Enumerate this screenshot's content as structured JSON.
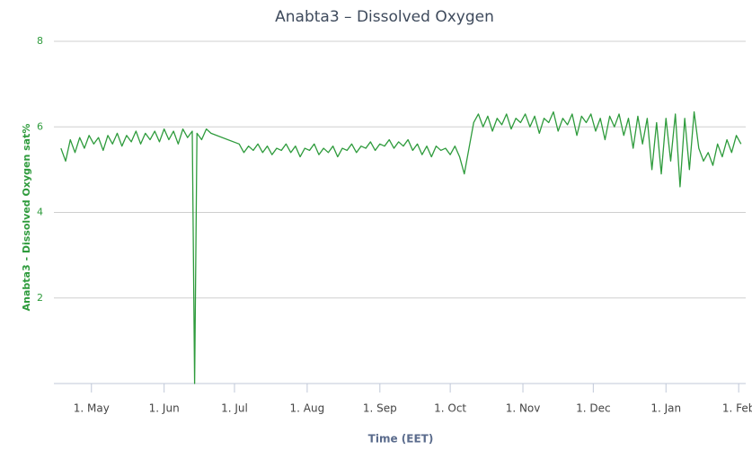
{
  "chart_data": {
    "type": "line",
    "title": "Anabta3 – Dissolved Oxygen",
    "y_label": "Anabta3 - Dissolved Oxygen sat%",
    "x_label": "Time (EET)",
    "xlim": [
      -16,
      279
    ],
    "xticks": [
      {
        "value": 0,
        "label": "1. May"
      },
      {
        "value": 31,
        "label": "1. Jun"
      },
      {
        "value": 61,
        "label": "1. Jul"
      },
      {
        "value": 92,
        "label": "1. Aug"
      },
      {
        "value": 123,
        "label": "1. Sep"
      },
      {
        "value": 153,
        "label": "1. Oct"
      },
      {
        "value": 184,
        "label": "1. Nov"
      },
      {
        "value": 214,
        "label": "1. Dec"
      },
      {
        "value": 245,
        "label": "1. Jan"
      },
      {
        "value": 276,
        "label": "1. Feb"
      }
    ],
    "ylim": [
      0,
      8
    ],
    "yticks": [
      2,
      4,
      6,
      8
    ],
    "grid": true,
    "series": [
      {
        "name": "Anabta3 - Dissolved Oxygen sat%",
        "color": "#2e9b3c",
        "x": [
          -13,
          -11,
          -9,
          -7,
          -5,
          -3,
          -1,
          1,
          3,
          5,
          7,
          9,
          11,
          13,
          15,
          17,
          19,
          21,
          23,
          25,
          27,
          29,
          31,
          33,
          35,
          37,
          39,
          41,
          43,
          44,
          45,
          47,
          49,
          51,
          63,
          65,
          67,
          69,
          71,
          73,
          75,
          77,
          79,
          81,
          83,
          85,
          87,
          89,
          91,
          93,
          95,
          97,
          99,
          101,
          103,
          105,
          107,
          109,
          111,
          113,
          115,
          117,
          119,
          121,
          123,
          125,
          127,
          129,
          131,
          133,
          135,
          137,
          139,
          141,
          143,
          145,
          147,
          149,
          151,
          153,
          155,
          157,
          159,
          161,
          163,
          165,
          167,
          169,
          171,
          173,
          175,
          177,
          179,
          181,
          183,
          185,
          187,
          189,
          191,
          193,
          195,
          197,
          199,
          201,
          203,
          205,
          207,
          209,
          211,
          213,
          215,
          217,
          219,
          221,
          223,
          225,
          227,
          229,
          231,
          233,
          235,
          237,
          239,
          241,
          243,
          245,
          247,
          249,
          251,
          253,
          255,
          257,
          259,
          261,
          263,
          265,
          267,
          269,
          271,
          273,
          275,
          277
        ],
        "values": [
          5.5,
          5.2,
          5.7,
          5.4,
          5.75,
          5.5,
          5.8,
          5.6,
          5.75,
          5.45,
          5.8,
          5.6,
          5.85,
          5.55,
          5.8,
          5.65,
          5.9,
          5.6,
          5.85,
          5.7,
          5.9,
          5.65,
          5.95,
          5.7,
          5.9,
          5.6,
          5.95,
          5.75,
          5.9,
          0,
          5.85,
          5.7,
          5.95,
          5.85,
          5.6,
          5.4,
          5.55,
          5.45,
          5.6,
          5.4,
          5.55,
          5.35,
          5.5,
          5.45,
          5.6,
          5.4,
          5.55,
          5.3,
          5.5,
          5.45,
          5.6,
          5.35,
          5.5,
          5.4,
          5.55,
          5.3,
          5.5,
          5.45,
          5.6,
          5.4,
          5.55,
          5.5,
          5.65,
          5.45,
          5.6,
          5.55,
          5.7,
          5.5,
          5.65,
          5.55,
          5.7,
          5.45,
          5.6,
          5.35,
          5.55,
          5.3,
          5.55,
          5.45,
          5.5,
          5.35,
          5.55,
          5.3,
          4.9,
          5.5,
          6.1,
          6.3,
          6.0,
          6.25,
          5.9,
          6.2,
          6.05,
          6.3,
          5.95,
          6.2,
          6.1,
          6.3,
          6.0,
          6.25,
          5.85,
          6.2,
          6.1,
          6.35,
          5.9,
          6.2,
          6.05,
          6.3,
          5.8,
          6.25,
          6.1,
          6.3,
          5.9,
          6.2,
          5.7,
          6.25,
          6.0,
          6.3,
          5.8,
          6.2,
          5.5,
          6.25,
          5.6,
          6.2,
          5.0,
          6.1,
          4.9,
          6.2,
          5.2,
          6.3,
          4.6,
          6.2,
          5.0,
          6.35,
          5.5,
          5.2,
          5.4,
          5.1,
          5.6,
          5.3,
          5.7,
          5.4,
          5.8,
          5.6
        ]
      }
    ]
  }
}
